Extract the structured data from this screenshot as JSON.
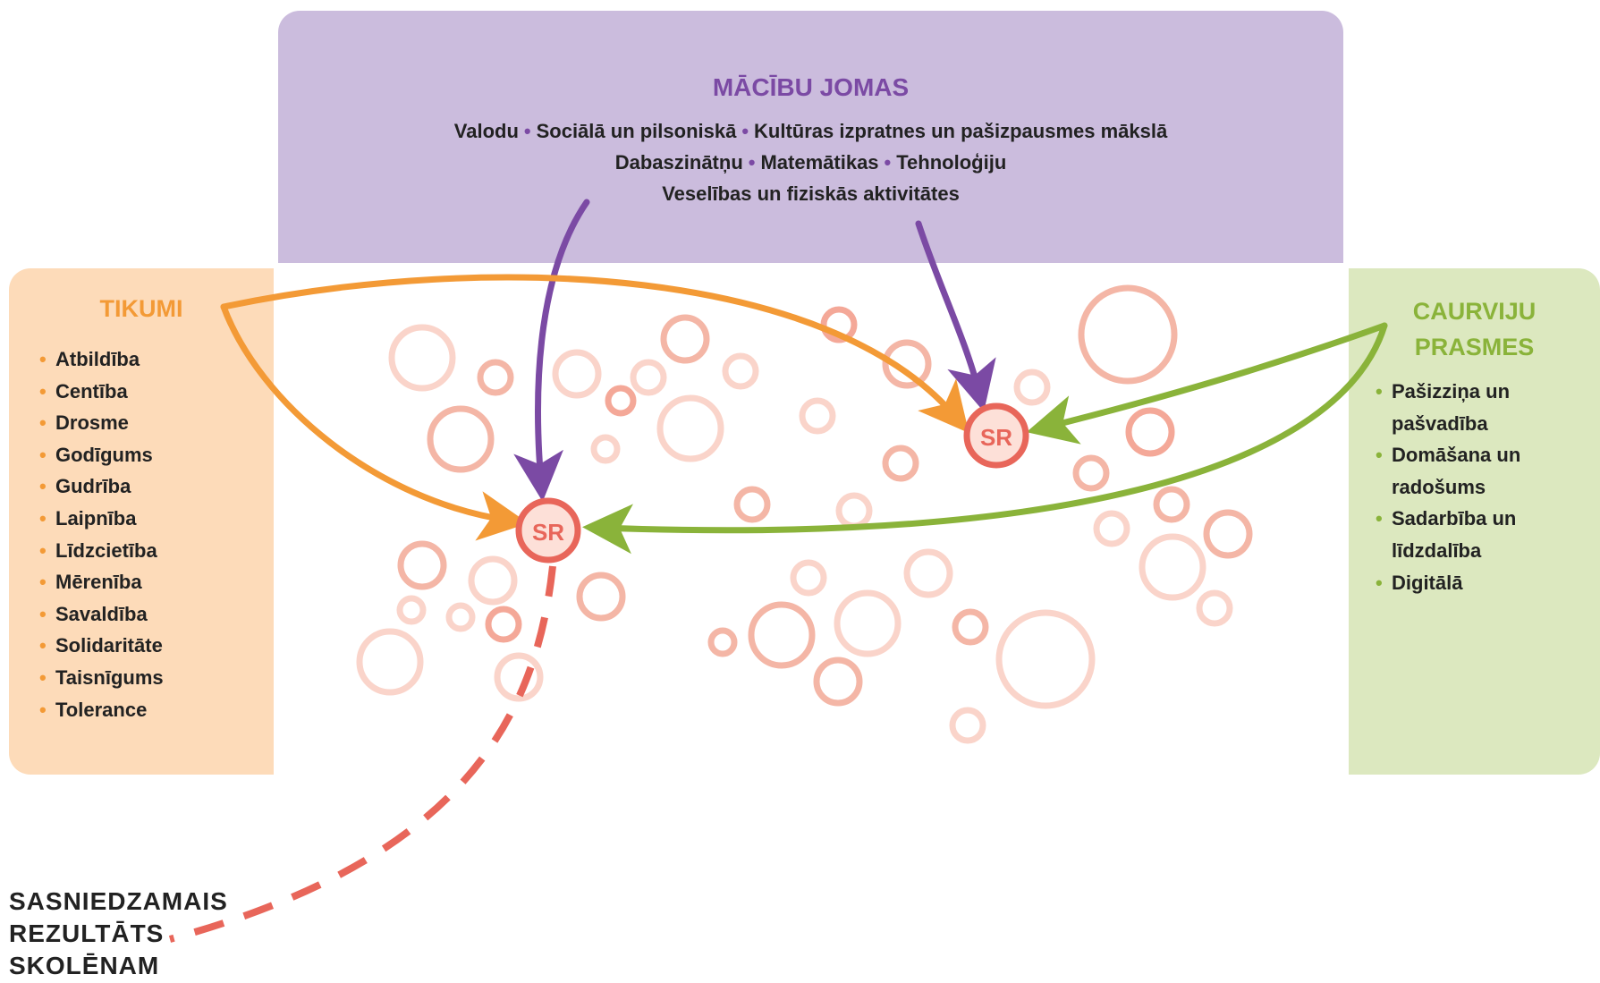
{
  "top": {
    "title": "MĀCĪBU JOMAS",
    "lines": [
      [
        "Valodu",
        "Sociālā un pilsoniskā",
        "Kultūras izpratnes un pašizpausmes mākslā"
      ],
      [
        "Dabaszinātņu",
        "Matemātikas",
        "Tehnoloģiju"
      ],
      [
        "Veselības un fiziskās aktivitātes"
      ]
    ]
  },
  "left": {
    "title": "TIKUMI",
    "items": [
      "Atbildība",
      "Centība",
      "Drosme",
      "Godīgums",
      "Gudrība",
      "Laipnība",
      "Līdzcietība",
      "Mērenība",
      "Savaldība",
      "Solidaritāte",
      "Taisnīgums",
      "Tolerance"
    ]
  },
  "right": {
    "title_lines": [
      "CAURVIJU",
      "PRASMES"
    ],
    "items": [
      [
        "Pašizziņa un",
        "pašvadība"
      ],
      [
        "Domāšana un",
        "radošums"
      ],
      [
        "Sadarbība un",
        "līdzdalība"
      ],
      [
        "Digitālā"
      ]
    ]
  },
  "nodes": {
    "sr_label": "SR"
  },
  "result": {
    "lines": [
      "SASNIEDZAMAIS",
      "REZULTĀTS",
      "SKOLĒNAM"
    ]
  },
  "colors": {
    "purple": "#7b4aa4",
    "orange": "#f39a36",
    "green": "#8ab33a",
    "coral": "#e8665a",
    "bubble": "#f4b6a6"
  }
}
